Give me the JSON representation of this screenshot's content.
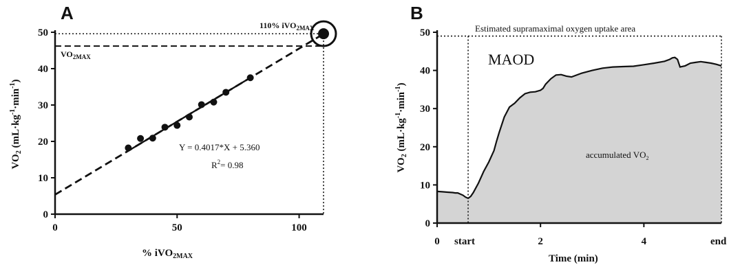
{
  "chart_data": [
    {
      "type": "scatter",
      "panel": "A",
      "xlabel": "% iVO2MAX",
      "ylabel": "VO2 (mL·kg-1·min-1)",
      "xlim": [
        0,
        110
      ],
      "ylim": [
        0,
        50
      ],
      "xticks": [
        0,
        50,
        100
      ],
      "yticks": [
        0,
        10,
        20,
        30,
        40,
        50
      ],
      "x": [
        30,
        35,
        40,
        45,
        50,
        55,
        60,
        65,
        70,
        80
      ],
      "y": [
        18.2,
        20.8,
        20.9,
        23.9,
        24.4,
        26.7,
        30.1,
        30.8,
        33.5,
        37.5
      ],
      "highlight_point": {
        "x": 110,
        "y": 49.6
      },
      "regression": {
        "slope": 0.4017,
        "intercept": 5.36,
        "equation": "Y = 0.4017*X + 5.360",
        "r2": "R2= 0.98"
      },
      "reference_lines": [
        {
          "label": "110% iVO2MAX",
          "y": 49.6
        },
        {
          "label": "VO2MAX",
          "y": 46.2
        }
      ]
    },
    {
      "type": "area",
      "panel": "B",
      "title": "Estimated supramaximal oxygen uptake area",
      "xlabel": "Time (min)",
      "ylabel": "VO2 (mL·kg-1·min-1)",
      "xlim": [
        0,
        5.5
      ],
      "ylim": [
        0,
        50
      ],
      "xticks": [
        0,
        2,
        4
      ],
      "yticks": [
        0,
        10,
        20,
        30,
        40,
        50
      ],
      "start_time": 0.6,
      "end_time": 5.5,
      "x": [
        0,
        0.1,
        0.2,
        0.3,
        0.35,
        0.4,
        0.5,
        0.55,
        0.6,
        0.65,
        0.7,
        0.8,
        0.9,
        1.0,
        1.1,
        1.15,
        1.2,
        1.3,
        1.4,
        1.5,
        1.6,
        1.7,
        1.8,
        1.9,
        2.0,
        2.05,
        2.1,
        2.2,
        2.3,
        2.4,
        2.5,
        2.6,
        2.8,
        3.0,
        3.2,
        3.4,
        3.6,
        3.8,
        4.0,
        4.2,
        4.4,
        4.5,
        4.55,
        4.6,
        4.65,
        4.7,
        4.8,
        4.9,
        5.0,
        5.1,
        5.2,
        5.3,
        5.4,
        5.5
      ],
      "y": [
        8.3,
        8.2,
        8.1,
        8.0,
        7.9,
        7.9,
        7.3,
        6.8,
        6.5,
        7.0,
        8.0,
        10.5,
        13.5,
        16.0,
        19.0,
        21.5,
        23.7,
        27.8,
        30.4,
        31.4,
        32.8,
        33.9,
        34.3,
        34.4,
        34.8,
        35.3,
        36.4,
        37.8,
        38.8,
        38.9,
        38.5,
        38.3,
        39.3,
        40.0,
        40.6,
        40.9,
        41.0,
        41.1,
        41.5,
        41.9,
        42.4,
        42.9,
        43.3,
        43.4,
        42.9,
        40.9,
        41.2,
        41.9,
        42.1,
        42.3,
        42.1,
        41.9,
        41.6,
        41.2
      ],
      "annotations": {
        "maod": "MAOD",
        "area_label": "accumulated VO2"
      }
    }
  ],
  "labels": {
    "panel_a": "A",
    "panel_b": "B",
    "a_ylabel_main": "VO",
    "a_ylabel_sub": "2",
    "a_ylabel_rest": " (mL·kg",
    "a_ylabel_sup1": "-1",
    "a_ylabel_mid": "·min",
    "a_ylabel_sup2": "-1",
    "a_ylabel_end": ")",
    "a_xlabel_main": "% iVO",
    "a_xlabel_sub": "2MAX",
    "a_ref_110_main": "110% iVO",
    "a_ref_110_sub": "2MAX",
    "a_ref_vo2max_main": "VO",
    "a_ref_vo2max_sub": "2MAX",
    "a_equation": "Y = 0.4017*X + 5.360",
    "a_r2_main": "R",
    "a_r2_sup": "2",
    "a_r2_rest": "= 0.98",
    "b_title": "Estimated supramaximal oxygen uptake area",
    "b_maod": "MAOD",
    "b_area_main": "accumulated VO",
    "b_area_sub": "2",
    "b_xlabel": "Time (min)",
    "b_start": "start",
    "b_end": "end"
  },
  "colors": {
    "ink": "#111111",
    "area_fill": "#d4d4d4"
  }
}
